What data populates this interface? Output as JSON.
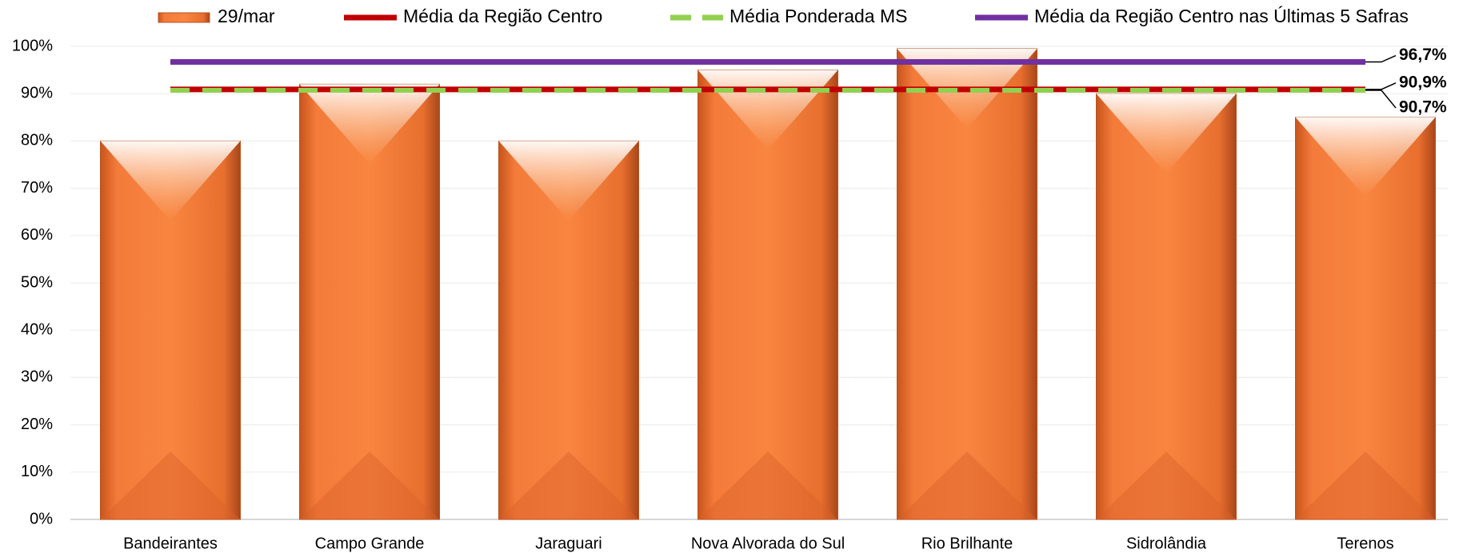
{
  "chart_data": {
    "type": "bar",
    "categories": [
      "Bandeirantes",
      "Campo Grande",
      "Jaraguari",
      "Nova Alvorada do Sul",
      "Rio Brilhante",
      "Sidrolândia",
      "Terenos"
    ],
    "bar_series": {
      "name": "29/mar",
      "color": "#f7803e",
      "values": [
        80,
        92,
        80,
        95,
        99.5,
        90,
        85
      ]
    },
    "series": [
      {
        "name": "Média da Região Centro",
        "color": "#c00000",
        "type": "line",
        "values": [
          90.9,
          90.9,
          90.9,
          90.9,
          90.9,
          90.9,
          90.9
        ],
        "value_labels": [
          null,
          null,
          null,
          null,
          null,
          null,
          "90,9%"
        ]
      },
      {
        "name": "Média Ponderada MS",
        "color": "#92d050",
        "type": "line",
        "dashed": true,
        "values": [
          90.7,
          90.7,
          90.7,
          90.7,
          90.7,
          90.7,
          90.7
        ],
        "value_labels": [
          null,
          null,
          null,
          null,
          null,
          null,
          "90,7%"
        ]
      },
      {
        "name": "Média da Região Centro nas Últimas 5 Safras",
        "color": "#7030a0",
        "type": "line",
        "values": [
          96.7,
          96.7,
          96.7,
          96.7,
          96.7,
          96.7,
          96.7
        ],
        "value_labels": [
          null,
          null,
          null,
          null,
          null,
          null,
          "96,7%"
        ]
      }
    ],
    "ylim": [
      0,
      100
    ],
    "yticks": [
      {
        "value": 0,
        "label": "0%"
      },
      {
        "value": 10,
        "label": "10%"
      },
      {
        "value": 20,
        "label": "20%"
      },
      {
        "value": 30,
        "label": "30%"
      },
      {
        "value": 40,
        "label": "40%"
      },
      {
        "value": 50,
        "label": "50%"
      },
      {
        "value": 60,
        "label": "60%"
      },
      {
        "value": 70,
        "label": "70%"
      },
      {
        "value": 80,
        "label": "80%"
      },
      {
        "value": 90,
        "label": "90%"
      },
      {
        "value": 100,
        "label": "100%"
      }
    ],
    "grid": true,
    "legend": "top"
  }
}
